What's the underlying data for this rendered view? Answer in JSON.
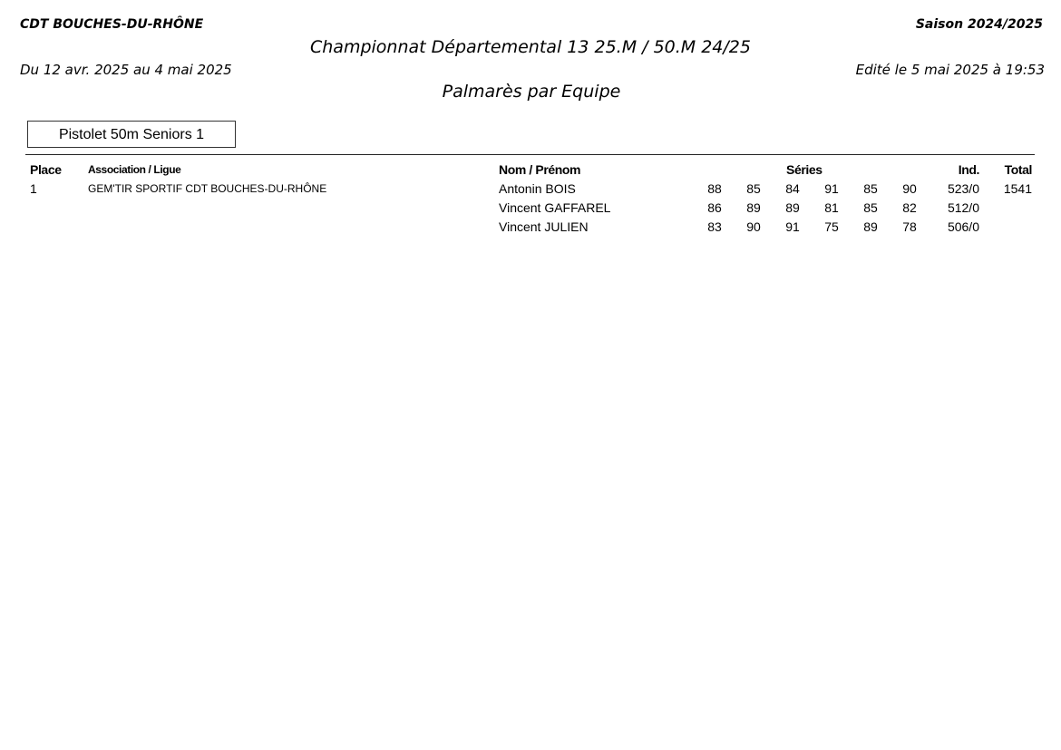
{
  "header": {
    "organization": "CDT BOUCHES-DU-RHÔNE",
    "season": "Saison 2024/2025",
    "title": "Championnat Départemental 13 25.M / 50.M 24/25",
    "period": "Du 12 avr. 2025 au 4 mai 2025",
    "edited": "Edité le 5 mai 2025 à 19:53",
    "subtitle": "Palmarès par Equipe"
  },
  "category": "Pistolet 50m Seniors 1",
  "table": {
    "columns": {
      "place": "Place",
      "association": "Association / Ligue",
      "name": "Nom / Prénom",
      "series": "Séries",
      "ind": "Ind.",
      "total": "Total"
    },
    "teams": [
      {
        "place": "1",
        "association": "GEM'TIR SPORTIF CDT BOUCHES-DU-RHÔNE",
        "total": "1541",
        "shooters": [
          {
            "name": "Antonin BOIS",
            "series": [
              "88",
              "85",
              "84",
              "91",
              "85",
              "90"
            ],
            "ind": "523/0"
          },
          {
            "name": "Vincent GAFFAREL",
            "series": [
              "86",
              "89",
              "89",
              "81",
              "85",
              "82"
            ],
            "ind": "512/0"
          },
          {
            "name": "Vincent JULIEN",
            "series": [
              "83",
              "90",
              "91",
              "75",
              "89",
              "78"
            ],
            "ind": "506/0"
          }
        ]
      }
    ]
  }
}
